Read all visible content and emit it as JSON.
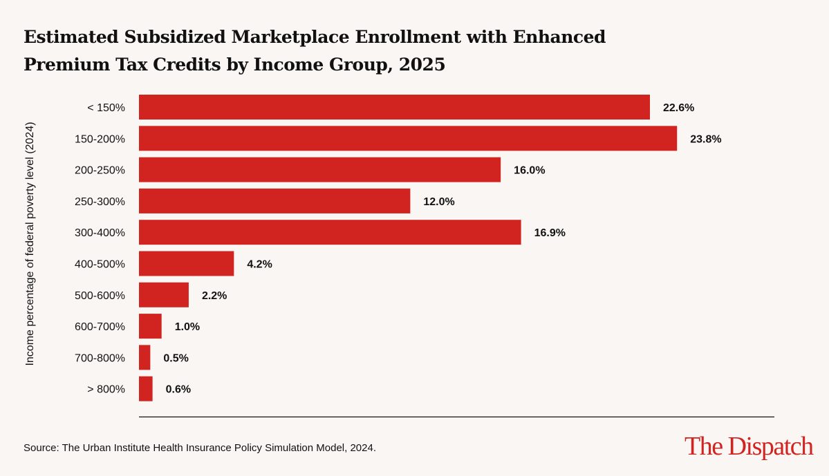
{
  "chart_data": {
    "type": "bar",
    "orientation": "horizontal",
    "title": "Estimated Subsidized Marketplace Enrollment with Enhanced Premium Tax Credits by Income Group, 2025",
    "ylabel": "Income percentage of federal poverty level (2024)",
    "xlabel": "",
    "categories": [
      "< 150%",
      "150-200%",
      "200-250%",
      "250-300%",
      "300-400%",
      "400-500%",
      "500-600%",
      "600-700%",
      "700-800%",
      "> 800%"
    ],
    "values": [
      22.6,
      23.8,
      16.0,
      12.0,
      16.9,
      4.2,
      2.2,
      1.0,
      0.5,
      0.6
    ],
    "data_labels": [
      "22.6%",
      "23.8%",
      "16.0%",
      "12.0%",
      "16.9%",
      "4.2%",
      "2.2%",
      "1.0%",
      "0.5%",
      "0.6%"
    ],
    "xlim": [
      0,
      28
    ],
    "grid": false,
    "bar_color": "#d12421"
  },
  "source": "Source: The Urban Institute Health Insurance Policy Simulation Model, 2024.",
  "logo": "The Dispatch",
  "colors": {
    "background": "#f9f6f3",
    "accent": "#d12421"
  }
}
